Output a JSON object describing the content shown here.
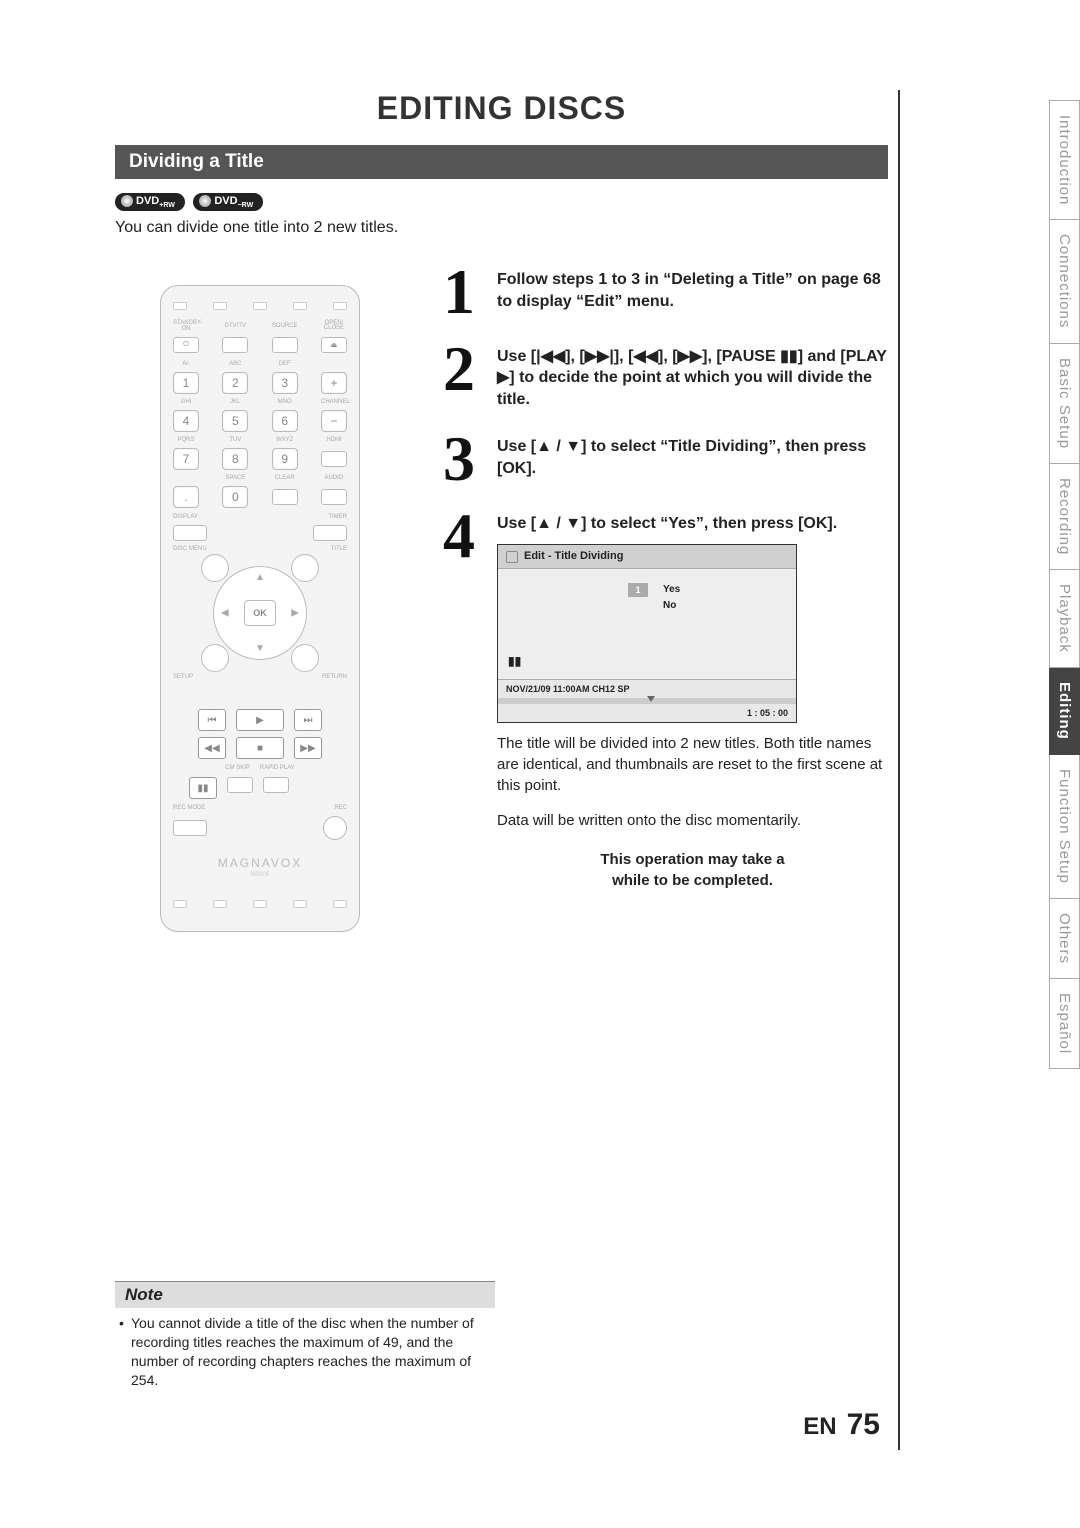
{
  "page": {
    "title": "EDITING DISCS",
    "section_title": "Dividing a Title",
    "lang_code": "EN",
    "number": "75"
  },
  "badges": {
    "dvd_rw_plus": "DVD",
    "plus_sub": "+RW",
    "dvd_rw_minus": "DVD",
    "minus_sub": "−RW"
  },
  "intro": "You can divide one title into 2 new titles.",
  "remote": {
    "labels_row1": [
      "STANDBY-ON",
      "DTV/TV",
      "SOURCE",
      "OPEN/\nCLOSE"
    ],
    "num_labels": [
      "A/.",
      "ABC",
      "DEF",
      "",
      "GHI",
      "JKL",
      "MNO",
      "CHANNEL",
      "PQRS",
      "TUV",
      "WXYZ",
      "HDMI",
      "",
      "SPACE",
      "CLEAR",
      "AUDIO"
    ],
    "nums": [
      "1",
      "2",
      "3",
      "+",
      "4",
      "5",
      "6",
      "−",
      "7",
      "8",
      "9",
      "",
      ".",
      "0",
      "",
      ""
    ],
    "mid_labels_left": "DISPLAY",
    "mid_labels_right": "TIMER",
    "disc_menu": "DISC MENU",
    "title": "TITLE",
    "setup": "SETUP",
    "ret": "RETURN",
    "ok": "OK",
    "cm_skip": "CM SKIP",
    "rapid": "RAPID PLAY",
    "rec_mode": "REC MODE",
    "rec": "REC",
    "brand": "MAGNAVOX"
  },
  "steps": {
    "s1": "Follow steps 1 to 3 in “Deleting a Title” on page 68 to display “Edit” menu.",
    "s2": "Use [|◀◀], [▶▶|], [◀◀], [▶▶], [PAUSE ▮▮] and [PLAY ▶] to decide the point at which you will divide the title.",
    "s3": "Use [▲ / ▼] to select “Title Dividing”, then press [OK].",
    "s4": "Use [▲ / ▼] to select “Yes”, then press [OK].",
    "s4_after1": "The title will be divided into 2 new titles. Both title names are identical, and thumbnails are reset to the first scene at this point.",
    "s4_after2": "Data will be written onto the disc momentarily.",
    "callout1": "This operation may take a",
    "callout2": "while to be completed."
  },
  "osd": {
    "header": "Edit - Title Dividing",
    "chip": "1",
    "yes": "Yes",
    "no": "No",
    "pause": "▮▮",
    "footer_left": "NOV/21/09 11:00AM CH12 SP",
    "footer_right": "1 : 05 : 00"
  },
  "note": {
    "heading": "Note",
    "item": "You cannot divide a title of the disc when the number of recording titles reaches the maximum of 49, and the number of recording chapters reaches the maximum of 254."
  },
  "tabs": [
    "Introduction",
    "Connections",
    "Basic Setup",
    "Recording",
    "Playback",
    "Editing",
    "Function Setup",
    "Others",
    "Español"
  ],
  "active_tab": "Editing",
  "colors": {
    "section_bar": "#555555",
    "tab_active": "#444444",
    "tab_inactive_text": "#999999",
    "border": "#333333"
  }
}
